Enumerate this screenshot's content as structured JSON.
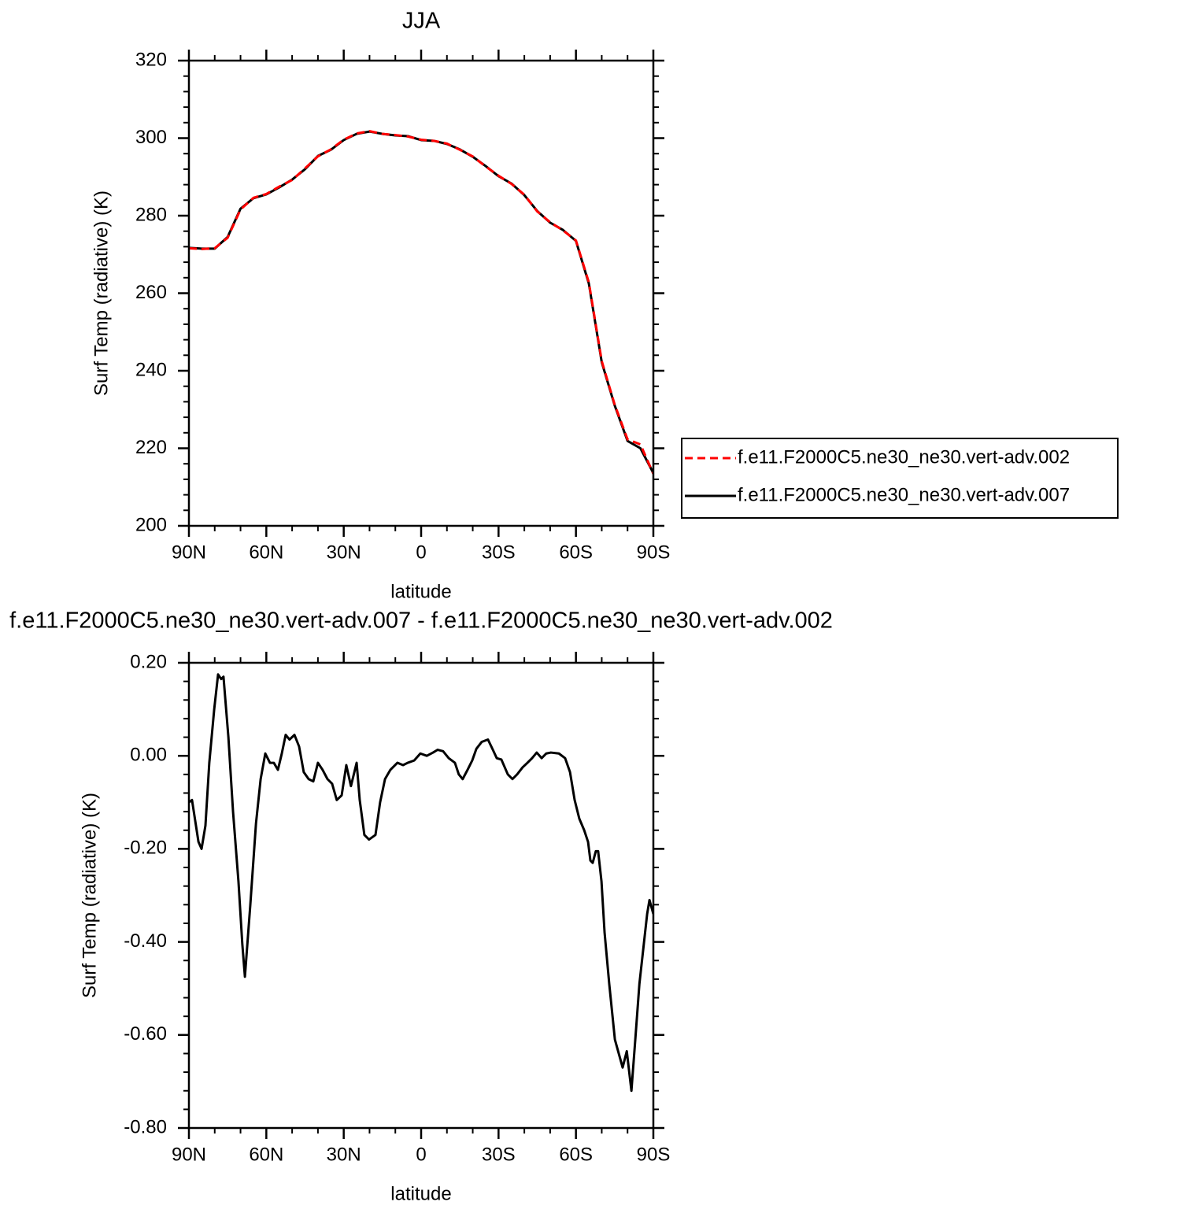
{
  "chart_data": [
    {
      "type": "line",
      "title": "JJA",
      "x_label": "latitude",
      "y_label": "Surf Temp (radiative) (K)",
      "xlim": [
        90,
        -90
      ],
      "xticks": [
        {
          "value": 90,
          "label": "90N"
        },
        {
          "value": 60,
          "label": "60N"
        },
        {
          "value": 30,
          "label": "30N"
        },
        0,
        {
          "value": -30,
          "label": "30S"
        },
        {
          "value": -60,
          "label": "60S"
        },
        {
          "value": -90,
          "label": "90S"
        }
      ],
      "ylim": [
        200,
        320
      ],
      "yticks": [
        200,
        220,
        240,
        260,
        280,
        300,
        320
      ],
      "legend": "outside-right",
      "x": [
        90,
        85,
        80,
        75,
        70,
        65,
        60,
        55,
        50,
        45,
        40,
        35,
        30,
        25,
        20,
        15,
        10,
        5,
        0,
        -5,
        -10,
        -15,
        -20,
        -25,
        -30,
        -35,
        -40,
        -45,
        -50,
        -55,
        -60,
        -65,
        -70,
        -75,
        -80,
        -85,
        -90
      ],
      "series": [
        {
          "name": "f.e11.F2000C5.ne30_ne30.vert-adv.002",
          "color": "#ff0000",
          "line_style": "dashed",
          "values": [
            271.6,
            271.4,
            271.6,
            274.3,
            281.6,
            284.6,
            285.6,
            287.5,
            289.2,
            292.2,
            295.3,
            297.1,
            299.6,
            301.2,
            301.8,
            301.1,
            300.8,
            300.4,
            299.6,
            299.3,
            298.6,
            297.0,
            295.3,
            292.7,
            290.3,
            288.2,
            285.4,
            281.1,
            278.3,
            276.2,
            273.6,
            262.8,
            242.5,
            231.3,
            222.3,
            221.0,
            213.4
          ]
        },
        {
          "name": "f.e11.F2000C5.ne30_ne30.vert-adv.007",
          "color": "#000000",
          "line_style": "solid",
          "values": [
            271.7,
            271.5,
            271.5,
            274.5,
            281.8,
            284.5,
            285.5,
            287.3,
            289.3,
            292,
            295.4,
            297,
            299.5,
            301.1,
            301.7,
            301.1,
            300.7,
            300.5,
            299.5,
            299.3,
            298.5,
            297.1,
            295.2,
            292.8,
            290.2,
            288.3,
            285.3,
            281.2,
            278.2,
            276.3,
            273.5,
            262.5,
            242.2,
            231.1,
            221.9,
            220,
            213.6
          ]
        }
      ]
    },
    {
      "type": "line",
      "title": "f.e11.F2000C5.ne30_ne30.vert-adv.007 - f.e11.F2000C5.ne30_ne30.vert-adv.002",
      "x_label": "latitude",
      "y_label": "Surf Temp (radiative) (K)",
      "xlim": [
        90,
        -90
      ],
      "xticks": [
        {
          "value": 90,
          "label": "90N"
        },
        {
          "value": 60,
          "label": "60N"
        },
        {
          "value": 30,
          "label": "30N"
        },
        0,
        {
          "value": -30,
          "label": "30S"
        },
        {
          "value": -60,
          "label": "60S"
        },
        {
          "value": -90,
          "label": "90S"
        }
      ],
      "ylim": [
        -0.8,
        0.2
      ],
      "yticks": [
        {
          "value": -0.8,
          "label": "-0.80"
        },
        {
          "value": -0.6,
          "label": "-0.60"
        },
        {
          "value": -0.4,
          "label": "-0.40"
        },
        {
          "value": -0.2,
          "label": "-0.20"
        },
        {
          "value": 0,
          "label": "0.00"
        },
        {
          "value": 0.2,
          "label": "0.20"
        }
      ],
      "x": [
        90,
        88.8,
        86.3,
        85.1,
        83.6,
        82.1,
        80.2,
        78.7,
        77.5,
        76.6,
        74.7,
        72.9,
        70.8,
        69.3,
        68.3,
        66.2,
        64.0,
        62.2,
        60.4,
        58.6,
        57.1,
        55.5,
        54.0,
        52.5,
        51.0,
        49.1,
        47.3,
        45.5,
        43.6,
        41.8,
        40.0,
        38.2,
        36.3,
        34.5,
        32.7,
        30.8,
        29.0,
        27.2,
        25.0,
        23.8,
        22.0,
        20.2,
        17.7,
        15.9,
        14.0,
        11.9,
        9.2,
        7.0,
        5.2,
        2.7,
        0.3,
        -2.2,
        -4.6,
        -6.4,
        -8.5,
        -10.7,
        -13.1,
        -14.6,
        -16.1,
        -18.0,
        -19.8,
        -21.4,
        -23.5,
        -25.9,
        -27.8,
        -29.3,
        -31.1,
        -33.6,
        -35.4,
        -37.2,
        -39.3,
        -41.2,
        -43.0,
        -44.8,
        -46.7,
        -48.5,
        -50.3,
        -53.4,
        -55.8,
        -57.7,
        -59.5,
        -61.3,
        -63.2,
        -64.7,
        -65.6,
        -66.5,
        -67.7,
        -68.6,
        -69.9,
        -71.1,
        -72.9,
        -75.1,
        -76.6,
        -78.1,
        -79.7,
        -81.5,
        -83.0,
        -84.6,
        -86.3,
        -87.6,
        -88.5,
        -90
      ],
      "series": [
        {
          "color": "#000000",
          "line_style": "solid",
          "values": [
            -0.1,
            -0.095,
            -0.185,
            -0.2,
            -0.15,
            -0.015,
            0.1,
            0.175,
            0.165,
            0.17,
            0.04,
            -0.12,
            -0.27,
            -0.405,
            -0.475,
            -0.32,
            -0.145,
            -0.05,
            0.005,
            -0.015,
            -0.015,
            -0.03,
            0.005,
            0.045,
            0.035,
            0.045,
            0.02,
            -0.035,
            -0.05,
            -0.055,
            -0.015,
            -0.03,
            -0.05,
            -0.06,
            -0.095,
            -0.085,
            -0.02,
            -0.065,
            -0.015,
            -0.095,
            -0.17,
            -0.18,
            -0.17,
            -0.1,
            -0.05,
            -0.03,
            -0.015,
            -0.02,
            -0.015,
            -0.01,
            0.005,
            0.0,
            0.007,
            0.013,
            0.01,
            -0.005,
            -0.015,
            -0.04,
            -0.05,
            -0.03,
            -0.01,
            0.015,
            0.03,
            0.035,
            0.013,
            -0.005,
            -0.008,
            -0.04,
            -0.05,
            -0.04,
            -0.025,
            -0.015,
            -0.005,
            0.007,
            -0.005,
            0.005,
            0.007,
            0.005,
            -0.005,
            -0.035,
            -0.095,
            -0.135,
            -0.16,
            -0.185,
            -0.225,
            -0.23,
            -0.205,
            -0.205,
            -0.27,
            -0.38,
            -0.49,
            -0.61,
            -0.64,
            -0.67,
            -0.635,
            -0.72,
            -0.61,
            -0.49,
            -0.405,
            -0.34,
            -0.31,
            -0.34
          ]
        }
      ]
    }
  ]
}
